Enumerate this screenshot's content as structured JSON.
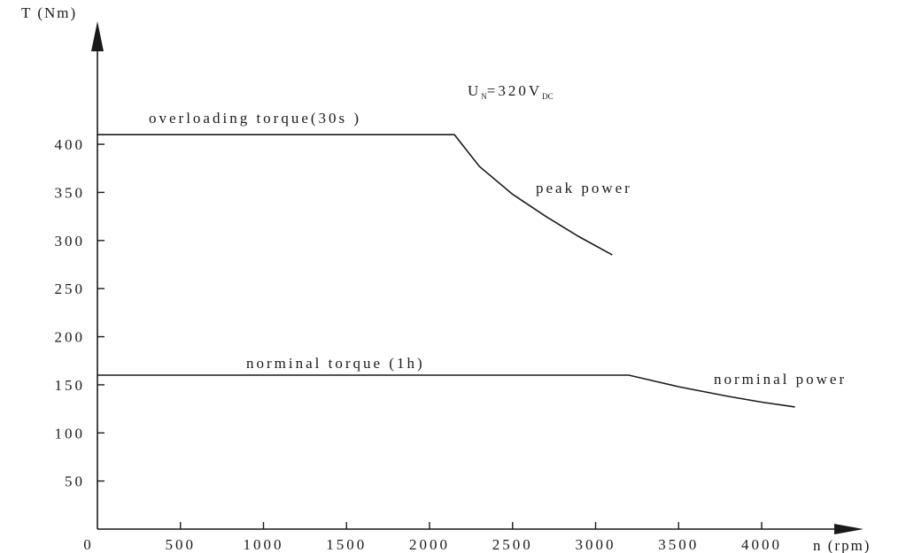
{
  "chart_data": {
    "type": "line",
    "title": "",
    "xlabel": "n (rpm)",
    "ylabel": "T (Nm)",
    "xlim": [
      0,
      4600
    ],
    "ylim": [
      0,
      540
    ],
    "x_ticks": [
      0,
      500,
      1000,
      1500,
      2000,
      2500,
      3000,
      3500,
      4000
    ],
    "y_ticks": [
      50,
      100,
      150,
      200,
      250,
      300,
      350,
      400
    ],
    "grid": false,
    "legend": "none",
    "series": [
      {
        "name": "overloading torque (30s)",
        "x": [
          0,
          2150,
          2300,
          2500,
          2700,
          2900,
          3100
        ],
        "y": [
          410,
          410,
          377,
          348,
          325,
          304,
          285
        ]
      },
      {
        "name": "norminal torque (1h)",
        "x": [
          0,
          3200,
          3500,
          3800,
          4000,
          4200
        ],
        "y": [
          160,
          160,
          148,
          138,
          132,
          127
        ]
      }
    ],
    "annotations": {
      "voltage": {
        "base": "U",
        "base_sub": "N",
        "value": "=320V",
        "value_sub": "DC"
      },
      "overloading_label": "overloading torque(30s )",
      "peak_power_label": "peak power",
      "nominal_torque_label": "norminal torque  (1h)",
      "nominal_power_label": "norminal power"
    }
  }
}
